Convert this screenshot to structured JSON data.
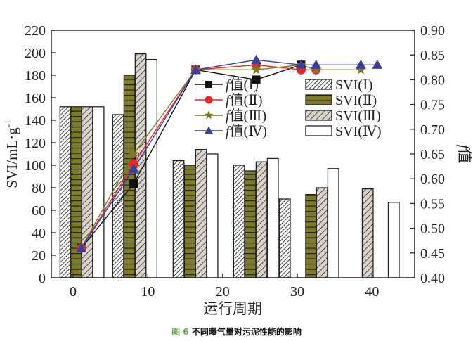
{
  "chart_data": {
    "type": "bar",
    "title": "",
    "caption": {
      "figure_label": "图 6",
      "text": "不同曝气量对污泥性能的影响"
    },
    "xlabel": "运行周期",
    "ylabel": "SVI/mL·g⁻¹",
    "ylabel_parts": {
      "main": "SVI/mL·g",
      "sup": "-1"
    },
    "y2label": "f值",
    "y2label_parts": {
      "italic": "f",
      "rest": "值"
    },
    "xlim": [
      -2.92,
      45.7
    ],
    "ylim": [
      0,
      220
    ],
    "y2lim": [
      0.4,
      0.9
    ],
    "x_ticks": [
      0,
      10,
      20,
      30,
      40
    ],
    "x_tick_labels": [
      "0",
      "10",
      "20",
      "30",
      "40"
    ],
    "y_ticks": [
      0,
      20,
      40,
      60,
      80,
      100,
      120,
      140,
      160,
      180,
      200,
      220
    ],
    "y_tick_labels": [
      "0",
      "20",
      "40",
      "60",
      "80",
      "100",
      "120",
      "140",
      "160",
      "180",
      "200",
      "220"
    ],
    "y2_ticks": [
      0.4,
      0.45,
      0.5,
      0.55,
      0.6,
      0.65,
      0.7,
      0.75,
      0.8,
      0.85,
      0.9
    ],
    "y2_tick_labels": [
      "0.40",
      "0.45",
      "0.50",
      "0.55",
      "0.60",
      "0.65",
      "0.70",
      "0.75",
      "0.80",
      "0.85",
      "0.90"
    ],
    "grid": false,
    "legend_placement": "center-right",
    "bar_width": 1.46,
    "bar_series": [
      {
        "name": "SVI(Ⅰ)",
        "label_prefix": "SVI(",
        "label_roman": "Ⅰ",
        "label_suffix": ")",
        "fill": "#ffffff",
        "pattern": "dense-diagonal",
        "points": [
          {
            "x": -1.03,
            "value": 152
          },
          {
            "x": 6.02,
            "value": 145
          },
          {
            "x": 14.11,
            "value": 104
          },
          {
            "x": 22.2,
            "value": 100
          },
          {
            "x": 28.32,
            "value": 70
          }
        ]
      },
      {
        "name": "SVI(Ⅱ)",
        "label_prefix": "SVI(",
        "label_roman": "Ⅱ",
        "label_suffix": ")",
        "fill": "#7d7a2c",
        "pattern": "horizontal-bricks",
        "points": [
          {
            "x": 0.42,
            "value": 152
          },
          {
            "x": 7.53,
            "value": 180
          },
          {
            "x": 15.62,
            "value": 100
          },
          {
            "x": 23.71,
            "value": 95
          },
          {
            "x": 31.84,
            "value": 74
          }
        ]
      },
      {
        "name": "SVI(Ⅲ)",
        "label_prefix": "SVI(",
        "label_roman": "Ⅲ",
        "label_suffix": ")",
        "fill": "#d9d3cc",
        "pattern": "sparse-diagonal",
        "points": [
          {
            "x": 1.88,
            "value": 152
          },
          {
            "x": 9.03,
            "value": 199
          },
          {
            "x": 17.12,
            "value": 114
          },
          {
            "x": 25.21,
            "value": 103
          },
          {
            "x": 33.3,
            "value": 80
          },
          {
            "x": 39.42,
            "value": 79
          }
        ]
      },
      {
        "name": "SVI(Ⅳ)",
        "label_prefix": "SVI(",
        "label_roman": "Ⅳ",
        "label_suffix": ")",
        "fill": "#ffffff",
        "pattern": "none",
        "points": [
          {
            "x": 3.39,
            "value": 152
          },
          {
            "x": 10.49,
            "value": 194
          },
          {
            "x": 18.63,
            "value": 110
          },
          {
            "x": 26.72,
            "value": 106
          },
          {
            "x": 34.81,
            "value": 97
          },
          {
            "x": 42.9,
            "value": 67
          }
        ]
      }
    ],
    "line_series": [
      {
        "name": "f值(Ⅰ)",
        "label_italic": "f",
        "label_rest": "值(Ⅰ)",
        "color": "#111111",
        "marker": "square",
        "axis": "right",
        "points": [
          {
            "x": 1.1,
            "y": 0.46
          },
          {
            "x": 8.1,
            "y": 0.59
          },
          {
            "x": 16.4,
            "y": 0.82
          },
          {
            "x": 24.5,
            "y": 0.8
          },
          {
            "x": 30.5,
            "y": 0.83
          }
        ]
      },
      {
        "name": "f值(Ⅱ)",
        "label_italic": "f",
        "label_rest": "值(Ⅱ)",
        "color": "#e8272a",
        "marker": "circle",
        "axis": "right",
        "points": [
          {
            "x": 1.1,
            "y": 0.46
          },
          {
            "x": 8.1,
            "y": 0.63
          },
          {
            "x": 16.4,
            "y": 0.82
          },
          {
            "x": 24.5,
            "y": 0.83
          },
          {
            "x": 30.5,
            "y": 0.82
          },
          {
            "x": 32.5,
            "y": 0.82
          }
        ]
      },
      {
        "name": "f值(Ⅲ)",
        "label_italic": "f",
        "label_rest": "值(Ⅲ)",
        "color": "#7d7a2c",
        "marker": "star",
        "axis": "right",
        "points": [
          {
            "x": 1.1,
            "y": 0.46
          },
          {
            "x": 8.1,
            "y": 0.65
          },
          {
            "x": 16.4,
            "y": 0.82
          },
          {
            "x": 24.5,
            "y": 0.82
          },
          {
            "x": 30.5,
            "y": 0.83
          },
          {
            "x": 32.5,
            "y": 0.82
          },
          {
            "x": 38.5,
            "y": 0.82
          }
        ]
      },
      {
        "name": "f值(Ⅳ)",
        "label_italic": "f",
        "label_rest": "值(Ⅳ)",
        "color": "#3b3f98",
        "marker": "triangle",
        "axis": "right",
        "points": [
          {
            "x": 1.1,
            "y": 0.46
          },
          {
            "x": 8.1,
            "y": 0.62
          },
          {
            "x": 16.4,
            "y": 0.82
          },
          {
            "x": 24.5,
            "y": 0.84
          },
          {
            "x": 30.5,
            "y": 0.83
          },
          {
            "x": 32.5,
            "y": 0.83
          },
          {
            "x": 38.5,
            "y": 0.83
          },
          {
            "x": 40.7,
            "y": 0.83
          }
        ]
      }
    ]
  }
}
